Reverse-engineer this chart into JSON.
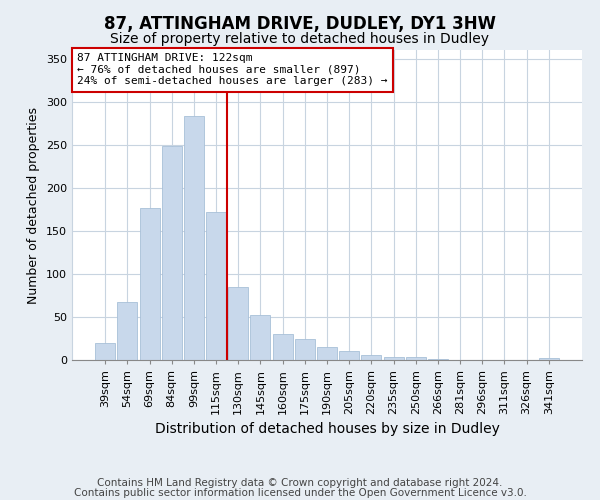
{
  "title": "87, ATTINGHAM DRIVE, DUDLEY, DY1 3HW",
  "subtitle": "Size of property relative to detached houses in Dudley",
  "xlabel": "Distribution of detached houses by size in Dudley",
  "ylabel": "Number of detached properties",
  "categories": [
    "39sqm",
    "54sqm",
    "69sqm",
    "84sqm",
    "99sqm",
    "115sqm",
    "130sqm",
    "145sqm",
    "160sqm",
    "175sqm",
    "190sqm",
    "205sqm",
    "220sqm",
    "235sqm",
    "250sqm",
    "266sqm",
    "281sqm",
    "296sqm",
    "311sqm",
    "326sqm",
    "341sqm"
  ],
  "values": [
    20,
    67,
    176,
    249,
    283,
    172,
    85,
    52,
    30,
    24,
    15,
    10,
    6,
    4,
    4,
    1,
    0,
    0,
    0,
    0,
    2
  ],
  "bar_color": "#c8d8eb",
  "bar_edge_color": "#a8c0d8",
  "vline_color": "#cc0000",
  "vline_x": 5.5,
  "annotation_line1": "87 ATTINGHAM DRIVE: 122sqm",
  "annotation_line2": "← 76% of detached houses are smaller (897)",
  "annotation_line3": "24% of semi-detached houses are larger (283) →",
  "annotation_box_color": "white",
  "annotation_box_edge": "#cc0000",
  "ylim": [
    0,
    360
  ],
  "yticks": [
    0,
    50,
    100,
    150,
    200,
    250,
    300,
    350
  ],
  "footer_line1": "Contains HM Land Registry data © Crown copyright and database right 2024.",
  "footer_line2": "Contains public sector information licensed under the Open Government Licence v3.0.",
  "title_fontsize": 12,
  "subtitle_fontsize": 10,
  "xlabel_fontsize": 10,
  "ylabel_fontsize": 9,
  "tick_fontsize": 8,
  "annotation_fontsize": 8,
  "footer_fontsize": 7.5,
  "background_color": "#e8eef4",
  "plot_background_color": "#ffffff",
  "grid_color": "#c8d4e0"
}
